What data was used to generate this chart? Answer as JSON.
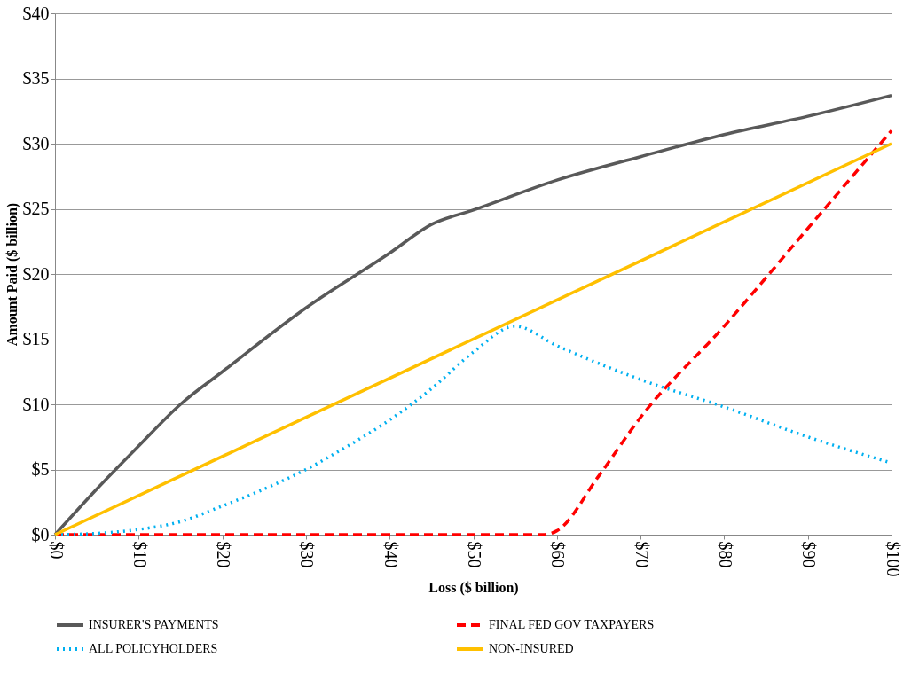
{
  "chart_data": {
    "type": "line",
    "xlabel": "Loss ($ billion)",
    "ylabel": "Amount Paid ($ billion)",
    "xlim": [
      0,
      100
    ],
    "ylim": [
      0,
      40
    ],
    "xticks": [
      {
        "value": 0,
        "label": "$0"
      },
      {
        "value": 10,
        "label": "$10"
      },
      {
        "value": 20,
        "label": "$20"
      },
      {
        "value": 30,
        "label": "$30"
      },
      {
        "value": 40,
        "label": "$40"
      },
      {
        "value": 50,
        "label": "$50"
      },
      {
        "value": 60,
        "label": "$60"
      },
      {
        "value": 70,
        "label": "$70"
      },
      {
        "value": 80,
        "label": "$80"
      },
      {
        "value": 90,
        "label": "$90"
      },
      {
        "value": 100,
        "label": "$100"
      }
    ],
    "yticks": [
      {
        "value": 0,
        "label": "$0"
      },
      {
        "value": 5,
        "label": "$5"
      },
      {
        "value": 10,
        "label": "$10"
      },
      {
        "value": 15,
        "label": "$15"
      },
      {
        "value": 20,
        "label": "$20"
      },
      {
        "value": 25,
        "label": "$25"
      },
      {
        "value": 30,
        "label": "$30"
      },
      {
        "value": 35,
        "label": "$35"
      },
      {
        "value": 40,
        "label": "$40"
      }
    ],
    "grid": "y",
    "legend": "bottom",
    "marker": "none",
    "series": [
      {
        "name": "INSURER'S PAYMENTS",
        "color": "#595959",
        "line_style": "solid",
        "x": [
          0,
          5,
          10,
          15,
          20,
          30,
          40,
          45,
          50,
          60,
          70,
          80,
          90,
          100
        ],
        "values": [
          0,
          3.5,
          6.8,
          10,
          12.5,
          17.4,
          21.6,
          23.8,
          24.9,
          27.2,
          29,
          30.7,
          32.1,
          33.7
        ]
      },
      {
        "name": "FINAL FED GOV TAXPAYERS",
        "color": "#ff0000",
        "line_style": "dashed",
        "x": [
          0,
          58.5,
          60,
          65,
          70,
          80,
          90,
          100
        ],
        "values": [
          0,
          0,
          0.3,
          4.5,
          9,
          16,
          23.5,
          31
        ]
      },
      {
        "name": "ALL POLICYHOLDERS",
        "color": "#00b0f0",
        "line_style": "dotted",
        "x": [
          0,
          5,
          10,
          15,
          20,
          25,
          30,
          35,
          40,
          45,
          50,
          55,
          60,
          70,
          80,
          90,
          100
        ],
        "values": [
          0,
          0.1,
          0.4,
          1,
          2.2,
          3.5,
          5,
          6.8,
          8.8,
          11.2,
          14,
          16,
          14.5,
          11.9,
          9.8,
          7.5,
          5.5
        ]
      },
      {
        "name": "NON-INSURED",
        "color": "#ffc000",
        "line_style": "solid",
        "x": [
          0,
          100
        ],
        "values": [
          0,
          30
        ]
      }
    ]
  }
}
